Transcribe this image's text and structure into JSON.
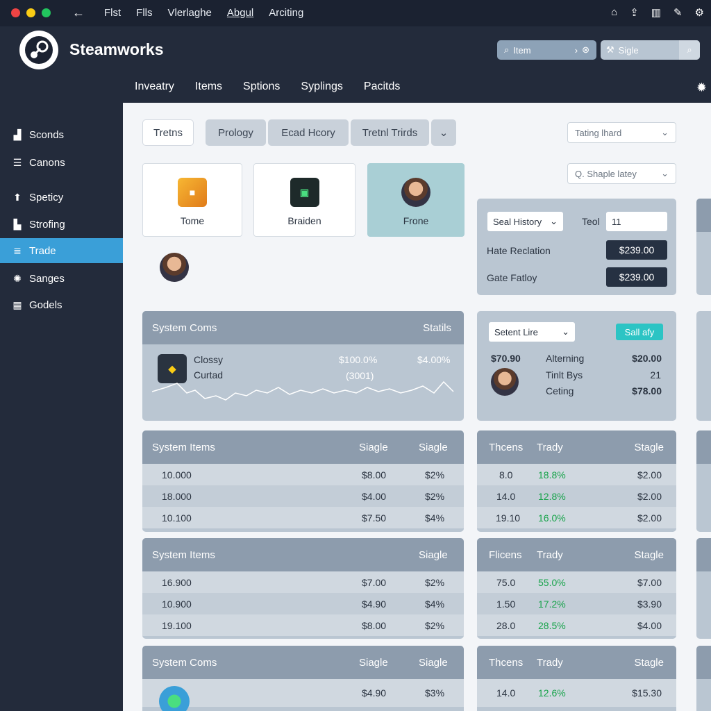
{
  "titlebar": {
    "menu": [
      "Flst",
      "Flls",
      "Vlerlaghe",
      "Abgul",
      "Arciting"
    ],
    "dots": {
      "red": "#ef4444",
      "yellow": "#facc15",
      "green": "#22c55e"
    }
  },
  "header": {
    "brand": "Steamworks",
    "search1": {
      "placeholder": "Item"
    },
    "search2": {
      "placeholder": "Sigle"
    },
    "nav": [
      "Inveatry",
      "Items",
      "Sptions",
      "Syplings",
      "Pacitds"
    ]
  },
  "sidebar": {
    "items": [
      {
        "label": "Sconds",
        "icon": "bar-chart-icon"
      },
      {
        "label": "Canons",
        "icon": "list-icon"
      },
      {
        "label": "Speticy",
        "icon": "arrow-up-icon"
      },
      {
        "label": "Strofing",
        "icon": "chart-icon"
      },
      {
        "label": "Trade",
        "icon": "database-icon",
        "active": true
      },
      {
        "label": "Sanges",
        "icon": "globe-icon"
      },
      {
        "label": "Godels",
        "icon": "grid-icon"
      }
    ],
    "active_color": "#3a9fd8"
  },
  "tabs": [
    "Tretns",
    "Prology",
    "Ecad Hcory",
    "Tretnl Trirds"
  ],
  "filters": {
    "top": "Tating lhard",
    "second": "Q. Shaple latey"
  },
  "cards": [
    {
      "label": "Tome",
      "icon": "gift-box-icon"
    },
    {
      "label": "Braiden",
      "icon": "game-cube-icon"
    },
    {
      "label": "Frone",
      "icon": "avatar-icon"
    }
  ],
  "trade_panel": {
    "select": "Seal History",
    "tool_label": "Teol",
    "tool_value": "11",
    "rows": [
      {
        "label": "Hate Reclation",
        "value": "$239.00"
      },
      {
        "label": "Gate Fatloy",
        "value": "$239.00"
      }
    ]
  },
  "system_coms": {
    "title": "System Coms",
    "stats_label": "Statils",
    "item1": "Clossy",
    "item2": "Curtad",
    "pct1": "$100.0%",
    "pct2": "$4.00%",
    "count": "(3001)"
  },
  "mini_panel": {
    "select": "Setent Lire",
    "button": "Sall afy",
    "rows": [
      {
        "left": "$70.90",
        "label": "Alterning",
        "value": "$20.00"
      },
      {
        "left": "",
        "label": "Tinlt Bys",
        "value": "21"
      },
      {
        "left": "",
        "label": "Ceting",
        "value": "$78.00"
      }
    ]
  },
  "tables_left": [
    {
      "headers": [
        "System Items",
        "Siagle",
        "Siagle"
      ],
      "rows": [
        [
          "10.000",
          "$8.00",
          "$2%"
        ],
        [
          "18.000",
          "$4.00",
          "$2%"
        ],
        [
          "10.100",
          "$7.50",
          "$4%"
        ]
      ]
    },
    {
      "headers": [
        "System Items",
        "",
        "Siagle"
      ],
      "rows": [
        [
          "16.900",
          "$7.00",
          "$2%"
        ],
        [
          "10.900",
          "$4.90",
          "$4%"
        ],
        [
          "19.100",
          "$8.00",
          "$2%"
        ]
      ]
    },
    {
      "headers": [
        "System Coms",
        "Siagle",
        "Siagle"
      ],
      "rows": [
        [
          "",
          "$4.90",
          "$3%"
        ]
      ]
    }
  ],
  "tables_right": [
    {
      "headers": [
        "Thcens",
        "Trady",
        "Stagle"
      ],
      "rows": [
        [
          "8.0",
          "18.8%",
          "$2.00"
        ],
        [
          "14.0",
          "12.8%",
          "$2.00"
        ],
        [
          "19.10",
          "16.0%",
          "$2.00"
        ]
      ]
    },
    {
      "headers": [
        "Flicens",
        "Trady",
        "Stagle"
      ],
      "rows": [
        [
          "75.0",
          "55.0%",
          "$7.00"
        ],
        [
          "1.50",
          "17.2%",
          "$3.90"
        ],
        [
          "28.0",
          "28.5%",
          "$4.00"
        ]
      ]
    },
    {
      "headers": [
        "Thcens",
        "Trady",
        "Stagle"
      ],
      "rows": [
        [
          "14.0",
          "12.6%",
          "$15.30"
        ]
      ]
    }
  ]
}
